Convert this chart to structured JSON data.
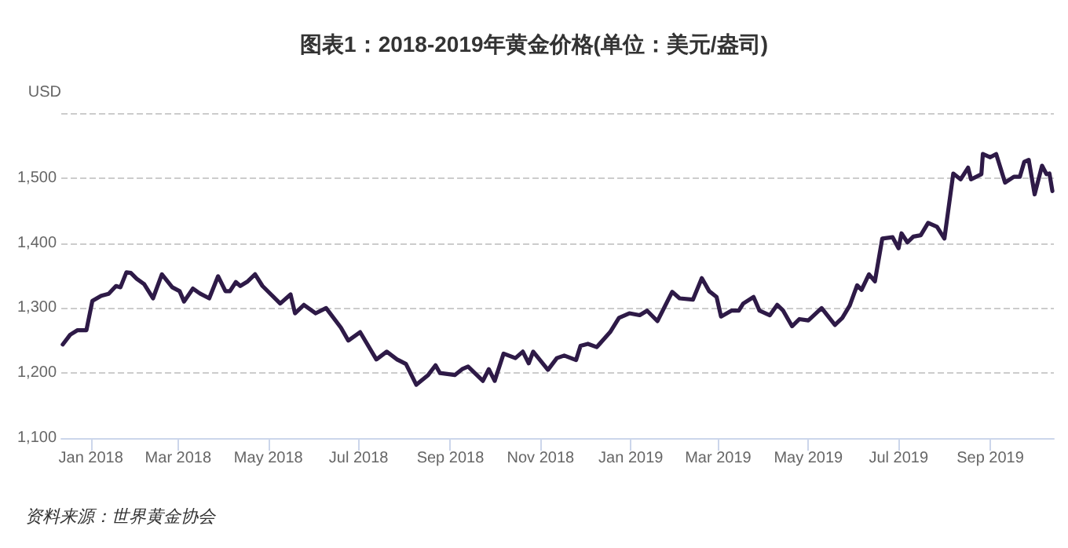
{
  "chart_data": {
    "type": "line",
    "title": "图表1：2018-2019年黄金价格(单位：美元/盎司)",
    "ylabel": "USD",
    "annotations": [
      "资料来源：世界黄金协会"
    ],
    "x": [
      "2017-12-13",
      "2017-12-18",
      "2017-12-23",
      "2017-12-29",
      "2018-01-02",
      "2018-01-08",
      "2018-01-13",
      "2018-01-18",
      "2018-01-21",
      "2018-01-25",
      "2018-01-28",
      "2018-02-01",
      "2018-02-06",
      "2018-02-12",
      "2018-02-18",
      "2018-02-25",
      "2018-03-02",
      "2018-03-05",
      "2018-03-11",
      "2018-03-16",
      "2018-03-22",
      "2018-03-28",
      "2018-04-02",
      "2018-04-05",
      "2018-04-09",
      "2018-04-12",
      "2018-04-17",
      "2018-04-22",
      "2018-04-27",
      "2018-05-09",
      "2018-05-16",
      "2018-05-19",
      "2018-05-25",
      "2018-06-02",
      "2018-06-09",
      "2018-06-19",
      "2018-06-24",
      "2018-07-02",
      "2018-07-13",
      "2018-07-20",
      "2018-07-27",
      "2018-08-02",
      "2018-08-09",
      "2018-08-17",
      "2018-08-22",
      "2018-08-25",
      "2018-09-04",
      "2018-09-09",
      "2018-09-13",
      "2018-09-23",
      "2018-09-27",
      "2018-10-01",
      "2018-10-07",
      "2018-10-15",
      "2018-10-20",
      "2018-10-24",
      "2018-10-27",
      "2018-11-06",
      "2018-11-12",
      "2018-11-17",
      "2018-11-25",
      "2018-11-28",
      "2018-12-03",
      "2018-12-09",
      "2018-12-18",
      "2018-12-24",
      "2018-12-31",
      "2019-01-07",
      "2019-01-12",
      "2019-01-19",
      "2019-01-29",
      "2019-02-03",
      "2019-02-12",
      "2019-02-18",
      "2019-02-23",
      "2019-02-28",
      "2019-03-03",
      "2019-03-10",
      "2019-03-15",
      "2019-03-18",
      "2019-03-25",
      "2019-03-29",
      "2019-04-05",
      "2019-04-10",
      "2019-04-14",
      "2019-04-20",
      "2019-04-25",
      "2019-05-01",
      "2019-05-10",
      "2019-05-19",
      "2019-05-24",
      "2019-05-29",
      "2019-06-03",
      "2019-06-06",
      "2019-06-11",
      "2019-06-15",
      "2019-06-20",
      "2019-06-27",
      "2019-07-01",
      "2019-07-03",
      "2019-07-07",
      "2019-07-11",
      "2019-07-16",
      "2019-07-21",
      "2019-07-27",
      "2019-08-01",
      "2019-08-07",
      "2019-08-12",
      "2019-08-17",
      "2019-08-19",
      "2019-08-26",
      "2019-08-27",
      "2019-09-01",
      "2019-09-05",
      "2019-09-11",
      "2019-09-17",
      "2019-09-21",
      "2019-09-24",
      "2019-09-27",
      "2019-10-01",
      "2019-10-06",
      "2019-10-09",
      "2019-10-11",
      "2019-10-13"
    ],
    "series": [
      {
        "color": "#2e1a47",
        "values": [
          1244,
          1259,
          1266,
          1266,
          1311,
          1319,
          1322,
          1334,
          1332,
          1355,
          1354,
          1345,
          1337,
          1315,
          1352,
          1332,
          1326,
          1310,
          1330,
          1322,
          1315,
          1349,
          1326,
          1326,
          1340,
          1334,
          1341,
          1352,
          1334,
          1307,
          1321,
          1292,
          1305,
          1292,
          1300,
          1270,
          1250,
          1263,
          1221,
          1233,
          1221,
          1214,
          1182,
          1197,
          1212,
          1200,
          1197,
          1206,
          1210,
          1188,
          1206,
          1188,
          1230,
          1223,
          1233,
          1215,
          1233,
          1205,
          1223,
          1227,
          1220,
          1242,
          1245,
          1240,
          1263,
          1285,
          1292,
          1289,
          1296,
          1280,
          1325,
          1315,
          1313,
          1346,
          1326,
          1317,
          1287,
          1296,
          1296,
          1307,
          1317,
          1296,
          1289,
          1305,
          1296,
          1272,
          1283,
          1281,
          1300,
          1274,
          1285,
          1304,
          1335,
          1328,
          1352,
          1341,
          1407,
          1409,
          1392,
          1415,
          1401,
          1410,
          1412,
          1431,
          1425,
          1407,
          1507,
          1498,
          1516,
          1498,
          1506,
          1537,
          1532,
          1537,
          1493,
          1502,
          1502,
          1525,
          1528,
          1475,
          1519,
          1506,
          1507,
          1480
        ]
      }
    ],
    "xlim": [
      "2017-12-12",
      "2019-10-14"
    ],
    "xticks": [
      {
        "value": "2018-01-01",
        "label": "Jan 2018"
      },
      {
        "value": "2018-03-01",
        "label": "Mar 2018"
      },
      {
        "value": "2018-05-01",
        "label": "May 2018"
      },
      {
        "value": "2018-07-01",
        "label": "Jul 2018"
      },
      {
        "value": "2018-09-01",
        "label": "Sep 2018"
      },
      {
        "value": "2018-11-01",
        "label": "Nov 2018"
      },
      {
        "value": "2019-01-01",
        "label": "Jan 2019"
      },
      {
        "value": "2019-03-01",
        "label": "Mar 2019"
      },
      {
        "value": "2019-05-01",
        "label": "May 2019"
      },
      {
        "value": "2019-07-01",
        "label": "Jul 2019"
      },
      {
        "value": "2019-09-01",
        "label": "Sep 2019"
      }
    ],
    "ylim": [
      1100,
      1600
    ],
    "yticks": [
      {
        "value": 1100,
        "label": "1,100"
      },
      {
        "value": 1200,
        "label": "1,200"
      },
      {
        "value": 1300,
        "label": "1,300"
      },
      {
        "value": 1400,
        "label": "1,400"
      },
      {
        "value": 1500,
        "label": "1,500"
      },
      {
        "value": 1600,
        "label": null
      }
    ],
    "grid": "y",
    "marker": "none",
    "line_style": "solid"
  }
}
